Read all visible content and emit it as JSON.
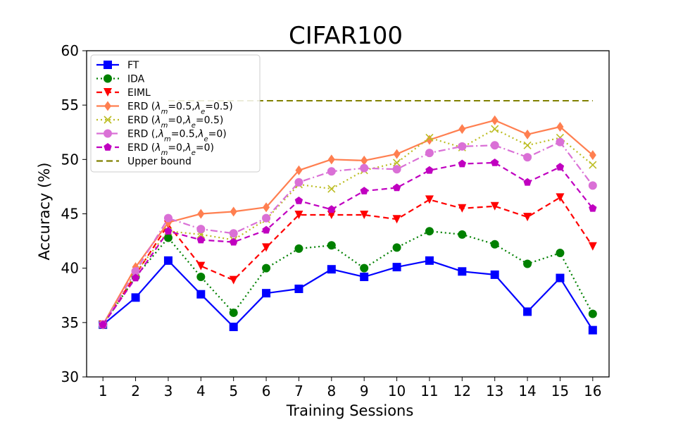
{
  "chart_data": {
    "type": "line",
    "title": "CIFAR100",
    "xlabel": "Training Sessions",
    "ylabel": "Accuracy (%)",
    "xlim": [
      0.5,
      16.5
    ],
    "ylim": [
      30,
      60
    ],
    "xticks": [
      1,
      2,
      3,
      4,
      5,
      6,
      7,
      8,
      9,
      10,
      11,
      12,
      13,
      14,
      15,
      16
    ],
    "yticks": [
      30,
      35,
      40,
      45,
      50,
      55,
      60
    ],
    "grid": false,
    "legend_position": "top-left",
    "x": [
      1,
      2,
      3,
      4,
      5,
      6,
      7,
      8,
      9,
      10,
      11,
      12,
      13,
      14,
      15,
      16
    ],
    "series": [
      {
        "name": "FT",
        "legend": [
          "FT"
        ],
        "color": "#0000ff",
        "dash": "solid",
        "marker": "square",
        "values": [
          34.8,
          37.3,
          40.7,
          37.6,
          34.6,
          37.7,
          38.1,
          39.9,
          39.2,
          40.1,
          40.7,
          39.7,
          39.4,
          36.0,
          39.1,
          34.3
        ]
      },
      {
        "name": "IDA",
        "legend": [
          "IDA"
        ],
        "color": "#008000",
        "dash": "dotted",
        "marker": "circle",
        "values": [
          34.8,
          39.2,
          42.8,
          39.2,
          35.9,
          40.0,
          41.8,
          42.1,
          40.0,
          41.9,
          43.4,
          43.1,
          42.2,
          40.4,
          41.4,
          35.8
        ]
      },
      {
        "name": "EIML",
        "legend": [
          "EIML"
        ],
        "color": "#ff0000",
        "dash": "dashed",
        "marker": "triangle-down",
        "values": [
          34.8,
          39.4,
          44.0,
          40.2,
          38.9,
          41.9,
          44.9,
          44.9,
          44.9,
          44.5,
          46.3,
          45.5,
          45.7,
          44.7,
          46.5,
          42.0
        ]
      },
      {
        "name": "ERD (λm=0.5,λe=0.5)",
        "legend": [
          "ERD (",
          "λ",
          "m",
          "=0.5,",
          "λ",
          "e",
          "=0.5)"
        ],
        "color": "#ff7f50",
        "dash": "solid",
        "marker": "diamond",
        "values": [
          34.8,
          40.1,
          44.2,
          45.0,
          45.2,
          45.6,
          49.0,
          50.0,
          49.9,
          50.5,
          51.8,
          52.8,
          53.6,
          52.3,
          53.0,
          50.4
        ]
      },
      {
        "name": "ERD (λm=0,λe=0.5)",
        "legend": [
          "ERD (",
          "λ",
          "m",
          "=0,",
          "λ",
          "e",
          "=0.5)"
        ],
        "color": "#bcbd22",
        "dash": "dotted",
        "marker": "x",
        "values": [
          34.8,
          39.6,
          43.4,
          43.1,
          42.6,
          44.5,
          47.7,
          47.3,
          49.0,
          49.7,
          52.0,
          51.1,
          52.8,
          51.3,
          52.0,
          49.5
        ]
      },
      {
        "name": "ERD (,λm=0.5,λe=0)",
        "legend": [
          "ERD (,",
          "λ",
          "m",
          "=0.5,",
          "λ",
          "e",
          "=0)"
        ],
        "color": "#da70d6",
        "dash": "dashdot",
        "marker": "circle",
        "values": [
          34.8,
          39.7,
          44.6,
          43.6,
          43.2,
          44.6,
          47.9,
          48.9,
          49.2,
          49.1,
          50.6,
          51.2,
          51.3,
          50.2,
          51.6,
          47.6
        ]
      },
      {
        "name": "ERD (λm=0,λe=0)",
        "legend": [
          "ERD (",
          "λ",
          "m",
          "=0,",
          "λ",
          "e",
          "=0)"
        ],
        "color": "#c000c0",
        "dash": "dashed",
        "marker": "pentagon",
        "values": [
          34.8,
          39.1,
          43.4,
          42.6,
          42.4,
          43.5,
          46.2,
          45.4,
          47.1,
          47.4,
          49.0,
          49.6,
          49.7,
          47.9,
          49.3,
          45.5
        ]
      }
    ],
    "reference_lines": [
      {
        "name": "Upper bound",
        "legend": [
          "Upper bound"
        ],
        "color": "#808000",
        "dash": "dashed",
        "value": 55.4,
        "x_range": [
          3,
          16
        ]
      }
    ]
  }
}
